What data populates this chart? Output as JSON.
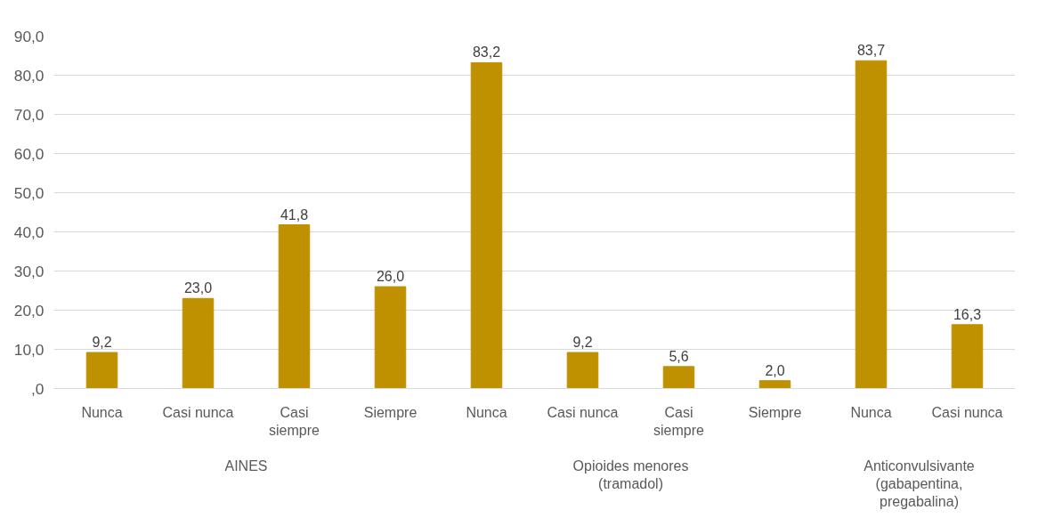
{
  "chart_data": {
    "type": "bar",
    "categories": [
      "Nunca",
      "Casi nunca",
      "Casi siempre",
      "Siempre",
      "Nunca",
      "Casi nunca",
      "Casi siempre",
      "Siempre",
      "Nunca",
      "Casi nunca"
    ],
    "values": [
      9.2,
      23.0,
      41.8,
      26.0,
      83.2,
      9.2,
      5.6,
      2.0,
      83.7,
      16.3
    ],
    "value_labels": [
      "9,2",
      "23,0",
      "41,8",
      "26,0",
      "83,2",
      "9,2",
      "5,6",
      "2,0",
      "83,7",
      "16,3"
    ],
    "color": "#bf9000",
    "ylim": [
      0,
      90
    ],
    "yticks": [
      {
        "value": 0,
        "label": ",0"
      },
      {
        "value": 10,
        "label": "10,0"
      },
      {
        "value": 20,
        "label": "20,0"
      },
      {
        "value": 30,
        "label": "30,0"
      },
      {
        "value": 40,
        "label": "40,0"
      },
      {
        "value": 50,
        "label": "50,0"
      },
      {
        "value": 60,
        "label": "60,0"
      },
      {
        "value": 70,
        "label": "70,0"
      },
      {
        "value": 80,
        "label": "80,0"
      },
      {
        "value": 90,
        "label": "90,0"
      }
    ],
    "grid": "y",
    "annotations": [
      "AINES",
      "Opioides menores (tramadol)",
      "Anticonvulsivante (gabapentina, pregabalina)"
    ]
  }
}
